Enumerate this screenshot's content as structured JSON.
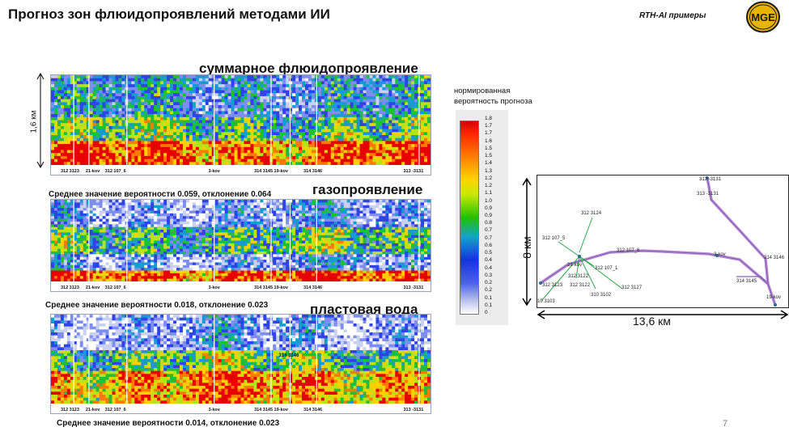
{
  "header": {
    "title": "Прогноз зон флюидопроявлений методами ИИ",
    "brand": "RTH-AI примеры",
    "logo_text": "MGE"
  },
  "panels": [
    {
      "title": "суммарное флюидопроявление",
      "stat": "Среднее значение вероятности 0.059, отклонение 0.064",
      "depth_label": "1,6 км",
      "well_labels": [
        "312 3123",
        "21-kov",
        "312 107_6",
        "3-kov",
        "314 3145 19-kov",
        "314 3146",
        "313 -3131"
      ]
    },
    {
      "title": "газопроявление",
      "stat": "Среднее  значение вероятности 0.018, отклонение 0.023",
      "well_labels": [
        "312 3123",
        "21-kov",
        "312 107_6",
        "3-kov",
        "314 3145 19-kov",
        "314 3146",
        "313 -3131"
      ]
    },
    {
      "title": "пластовая вода",
      "stat": "Среднее значение вероятности 0.014, отклонение 0.023",
      "inline_label": "314 3146",
      "well_labels": [
        "312 3123",
        "21-kov",
        "312 107_6",
        "3-kov",
        "314 3145 19-kov",
        "314 3146",
        "313 -3131"
      ]
    }
  ],
  "legend": {
    "title_line1": "нормированная",
    "title_line2": "вероятность прогноза",
    "ticks": [
      "1.8",
      "1.7",
      "1.7",
      "1.6",
      "1.5",
      "1.5",
      "1.4",
      "1.3",
      "1.2",
      "1.2",
      "1.1",
      "1.0",
      "0.9",
      "0.9",
      "0.8",
      "0.7",
      "0.7",
      "0.6",
      "0.5",
      "0.4",
      "0.4",
      "0.3",
      "0.2",
      "0.2",
      "0.1",
      "0.1",
      "0"
    ],
    "colors": {
      "high": "#d40000",
      "mid": "#21c000",
      "low": "#1532e0",
      "zero": "#ffffff"
    }
  },
  "map": {
    "height_label": "8 км",
    "width_label": "13,6 км",
    "wells": [
      {
        "name": "313 -3131"
      },
      {
        "name": "313 -3131"
      },
      {
        "name": "312 3124"
      },
      {
        "name": "312 107_5"
      },
      {
        "name": "312 107_6"
      },
      {
        "name": "21-kov"
      },
      {
        "name": "312 107_1"
      },
      {
        "name": "312 3122"
      },
      {
        "name": "312 3122"
      },
      {
        "name": "312 3123"
      },
      {
        "name": "312 3127"
      },
      {
        "name": "310 3102"
      },
      {
        "name": "10 3103"
      },
      {
        "name": "3-kov"
      },
      {
        "name": "314 3146"
      },
      {
        "name": "314 3145"
      },
      {
        "name": "19-kov"
      }
    ]
  },
  "page_number": "7"
}
